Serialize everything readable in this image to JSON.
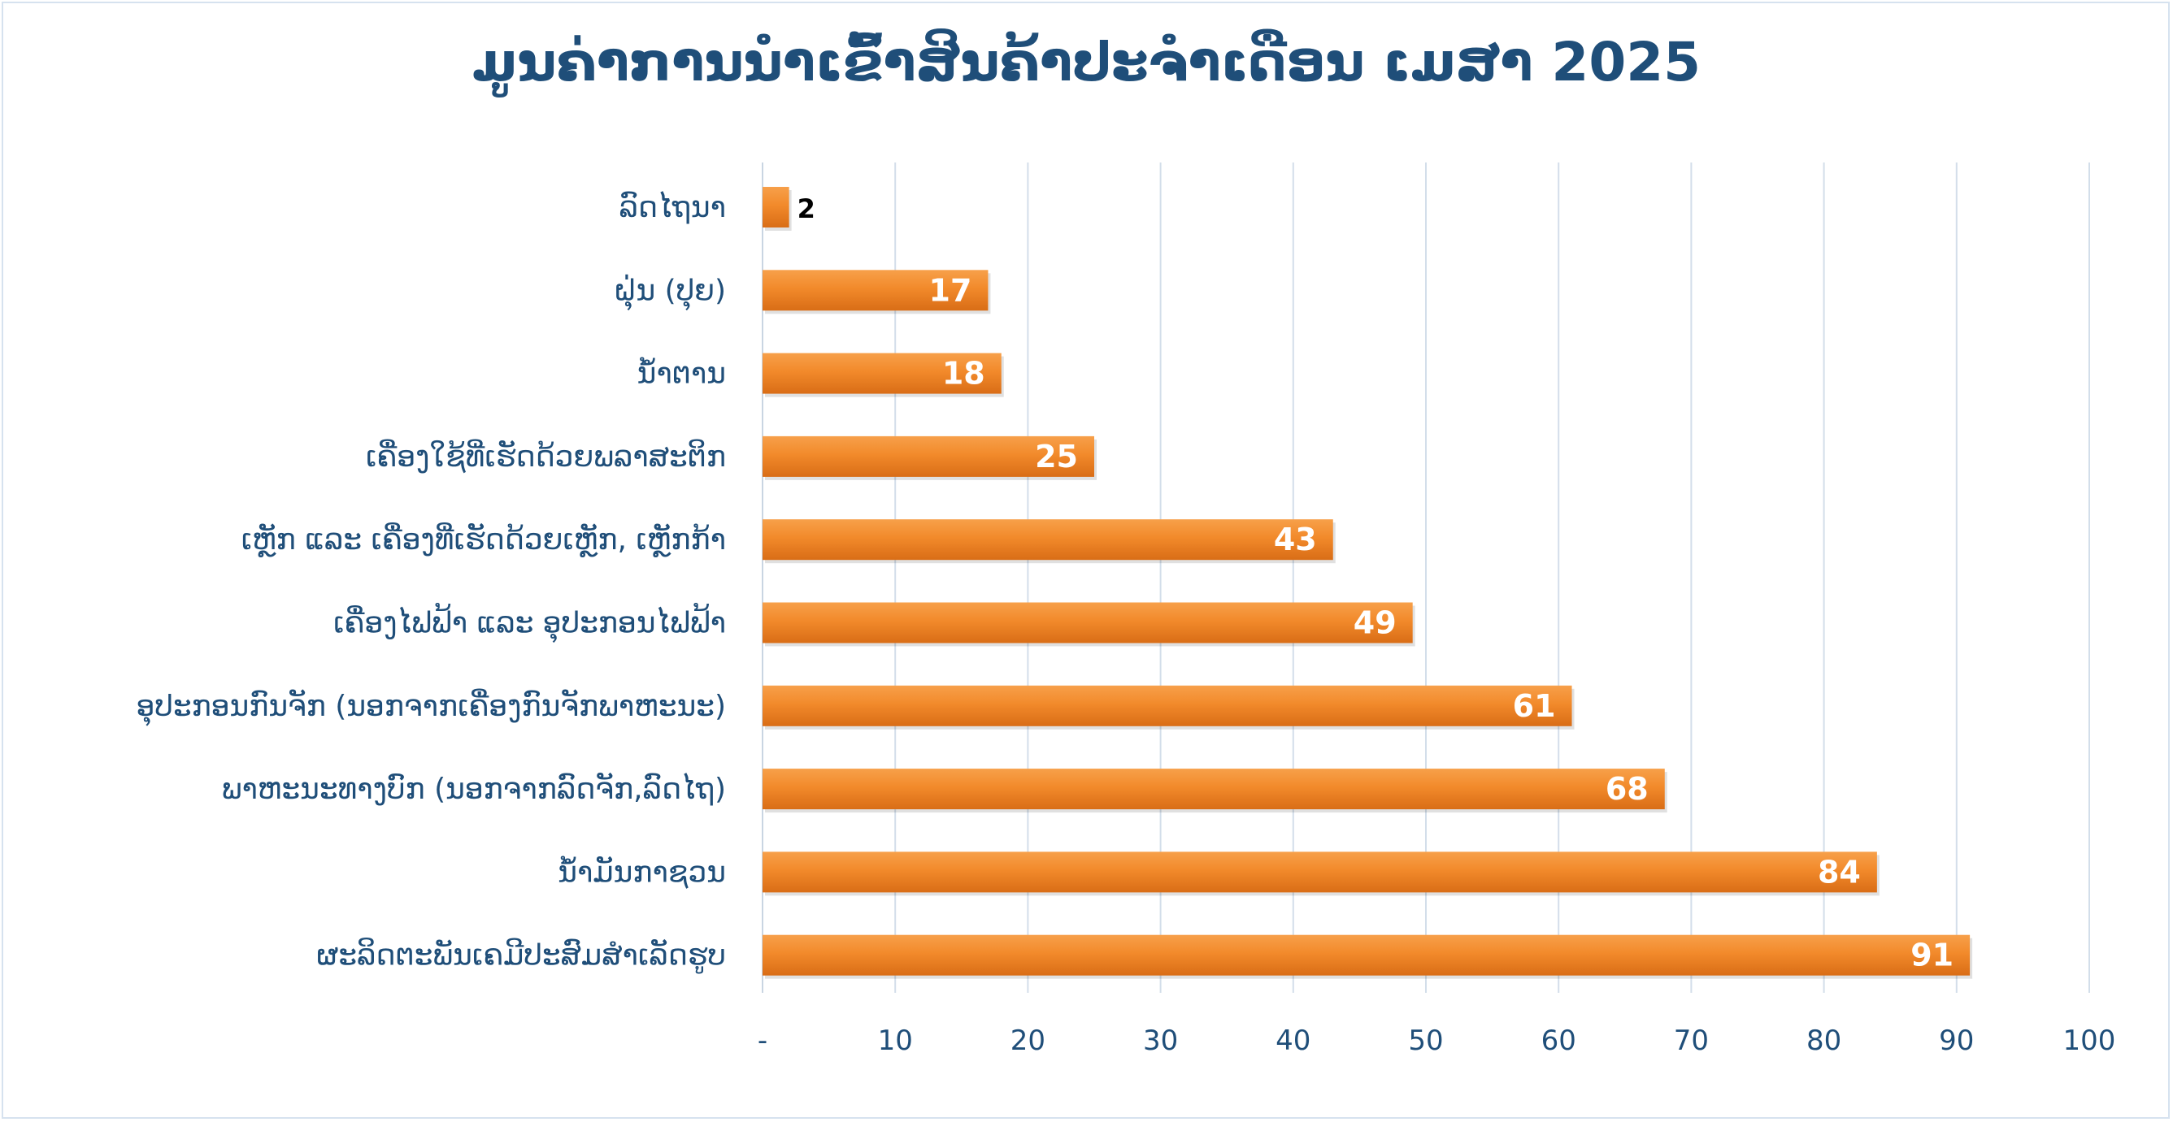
{
  "chart_data": {
    "type": "bar",
    "orientation": "horizontal",
    "title": "ມູນຄ່າການນຳເຂົ້າສິນຄ້າປະຈຳເດືອນ ເມສາ 2025",
    "categories": [
      "ລົດໄຖນາ",
      "ຝຸ່ນ (ປຸຍ)",
      "ນ້ຳຕານ",
      "ເຄື່ອງໃຊ້ທີ່ເຮັດດ້ວຍພລາສະຕິກ",
      "ເຫຼັກ ແລະ ເຄື່ອງທີ່ເຮັດດ້ວຍເຫຼັກ, ເຫຼັກກ້າ",
      "ເຄື່ອງໄຟຟ້າ ແລະ ອຸປະກອນໄຟຟ້າ",
      "ອຸປະກອນກົນຈັກ (ນອກຈາກເຄື່ອງກົນຈັກພາຫະນະ)",
      "ພາຫະນະທາງບົກ (ນອກຈາກລົດຈັກ,ລົດໄຖ)",
      "ນ້ຳມັນກາຊວນ",
      "ຜະລິດຕະພັນເຄມີປະສົມສຳເລັດຮູບ"
    ],
    "values": [
      2,
      17,
      18,
      25,
      43,
      49,
      61,
      68,
      84,
      91
    ],
    "data_labels": [
      "2",
      "17",
      "18",
      "25",
      "43",
      "49",
      "61",
      "68",
      "84",
      "91"
    ],
    "xlim": [
      0,
      100
    ],
    "xticks": [
      0,
      10,
      20,
      30,
      40,
      50,
      60,
      70,
      80,
      90,
      100
    ],
    "xtick_labels": [
      "-",
      "10",
      "20",
      "30",
      "40",
      "50",
      "60",
      "70",
      "80",
      "90",
      "100"
    ],
    "grid": true,
    "legend": "none",
    "colors": {
      "bar": "#f28a2b",
      "bar_dark": "#d96d16",
      "title": "#1f4e79",
      "category_label": "#1f4e79",
      "tick_label": "#1f4e79",
      "gridline": "#d3deea",
      "axis": "#c9d5e2",
      "data_label_inside": "#ffffff",
      "data_label_outside": "#000000"
    }
  }
}
